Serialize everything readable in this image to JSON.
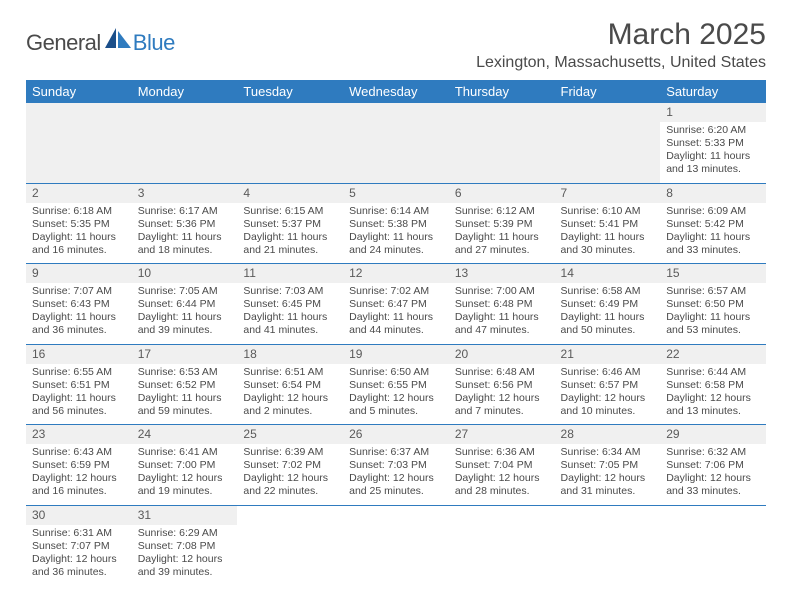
{
  "logo": {
    "part1": "General",
    "part2": "Blue"
  },
  "title": "March 2025",
  "location": "Lexington, Massachusetts, United States",
  "colors": {
    "accent": "#2f7bbf",
    "text": "#4a4a4a",
    "bg": "#ffffff",
    "spacer": "#f0f0f0"
  },
  "dayHeaders": [
    "Sunday",
    "Monday",
    "Tuesday",
    "Wednesday",
    "Thursday",
    "Friday",
    "Saturday"
  ],
  "weeks": [
    [
      null,
      null,
      null,
      null,
      null,
      null,
      {
        "n": "1",
        "sr": "6:20 AM",
        "ss": "5:33 PM",
        "dl": "11 hours and 13 minutes."
      }
    ],
    [
      {
        "n": "2",
        "sr": "6:18 AM",
        "ss": "5:35 PM",
        "dl": "11 hours and 16 minutes."
      },
      {
        "n": "3",
        "sr": "6:17 AM",
        "ss": "5:36 PM",
        "dl": "11 hours and 18 minutes."
      },
      {
        "n": "4",
        "sr": "6:15 AM",
        "ss": "5:37 PM",
        "dl": "11 hours and 21 minutes."
      },
      {
        "n": "5",
        "sr": "6:14 AM",
        "ss": "5:38 PM",
        "dl": "11 hours and 24 minutes."
      },
      {
        "n": "6",
        "sr": "6:12 AM",
        "ss": "5:39 PM",
        "dl": "11 hours and 27 minutes."
      },
      {
        "n": "7",
        "sr": "6:10 AM",
        "ss": "5:41 PM",
        "dl": "11 hours and 30 minutes."
      },
      {
        "n": "8",
        "sr": "6:09 AM",
        "ss": "5:42 PM",
        "dl": "11 hours and 33 minutes."
      }
    ],
    [
      {
        "n": "9",
        "sr": "7:07 AM",
        "ss": "6:43 PM",
        "dl": "11 hours and 36 minutes."
      },
      {
        "n": "10",
        "sr": "7:05 AM",
        "ss": "6:44 PM",
        "dl": "11 hours and 39 minutes."
      },
      {
        "n": "11",
        "sr": "7:03 AM",
        "ss": "6:45 PM",
        "dl": "11 hours and 41 minutes."
      },
      {
        "n": "12",
        "sr": "7:02 AM",
        "ss": "6:47 PM",
        "dl": "11 hours and 44 minutes."
      },
      {
        "n": "13",
        "sr": "7:00 AM",
        "ss": "6:48 PM",
        "dl": "11 hours and 47 minutes."
      },
      {
        "n": "14",
        "sr": "6:58 AM",
        "ss": "6:49 PM",
        "dl": "11 hours and 50 minutes."
      },
      {
        "n": "15",
        "sr": "6:57 AM",
        "ss": "6:50 PM",
        "dl": "11 hours and 53 minutes."
      }
    ],
    [
      {
        "n": "16",
        "sr": "6:55 AM",
        "ss": "6:51 PM",
        "dl": "11 hours and 56 minutes."
      },
      {
        "n": "17",
        "sr": "6:53 AM",
        "ss": "6:52 PM",
        "dl": "11 hours and 59 minutes."
      },
      {
        "n": "18",
        "sr": "6:51 AM",
        "ss": "6:54 PM",
        "dl": "12 hours and 2 minutes."
      },
      {
        "n": "19",
        "sr": "6:50 AM",
        "ss": "6:55 PM",
        "dl": "12 hours and 5 minutes."
      },
      {
        "n": "20",
        "sr": "6:48 AM",
        "ss": "6:56 PM",
        "dl": "12 hours and 7 minutes."
      },
      {
        "n": "21",
        "sr": "6:46 AM",
        "ss": "6:57 PM",
        "dl": "12 hours and 10 minutes."
      },
      {
        "n": "22",
        "sr": "6:44 AM",
        "ss": "6:58 PM",
        "dl": "12 hours and 13 minutes."
      }
    ],
    [
      {
        "n": "23",
        "sr": "6:43 AM",
        "ss": "6:59 PM",
        "dl": "12 hours and 16 minutes."
      },
      {
        "n": "24",
        "sr": "6:41 AM",
        "ss": "7:00 PM",
        "dl": "12 hours and 19 minutes."
      },
      {
        "n": "25",
        "sr": "6:39 AM",
        "ss": "7:02 PM",
        "dl": "12 hours and 22 minutes."
      },
      {
        "n": "26",
        "sr": "6:37 AM",
        "ss": "7:03 PM",
        "dl": "12 hours and 25 minutes."
      },
      {
        "n": "27",
        "sr": "6:36 AM",
        "ss": "7:04 PM",
        "dl": "12 hours and 28 minutes."
      },
      {
        "n": "28",
        "sr": "6:34 AM",
        "ss": "7:05 PM",
        "dl": "12 hours and 31 minutes."
      },
      {
        "n": "29",
        "sr": "6:32 AM",
        "ss": "7:06 PM",
        "dl": "12 hours and 33 minutes."
      }
    ],
    [
      {
        "n": "30",
        "sr": "6:31 AM",
        "ss": "7:07 PM",
        "dl": "12 hours and 36 minutes."
      },
      {
        "n": "31",
        "sr": "6:29 AM",
        "ss": "7:08 PM",
        "dl": "12 hours and 39 minutes."
      },
      null,
      null,
      null,
      null,
      null
    ]
  ],
  "labels": {
    "sunrise": "Sunrise:",
    "sunset": "Sunset:",
    "daylight": "Daylight:"
  }
}
